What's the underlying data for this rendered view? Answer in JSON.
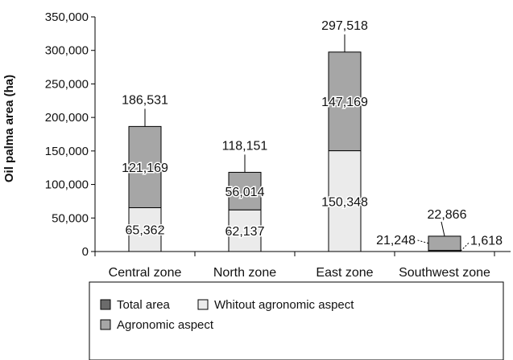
{
  "chart_data": {
    "type": "bar",
    "stacked": true,
    "ylabel": "Oil palma area (ha)",
    "ylim": [
      0,
      350000
    ],
    "yticks": [
      "0",
      "50,000",
      "100,000",
      "150,000",
      "200,000",
      "250,000",
      "300,000",
      "350,000"
    ],
    "categories": [
      "Central zone",
      "North zone",
      "East zone",
      "Southwest zone"
    ],
    "series": [
      {
        "name": "Total area",
        "values": [
          0,
          0,
          0,
          1618
        ],
        "labels": [
          "",
          "",
          "",
          "1,618"
        ],
        "color": "#6b6b6b"
      },
      {
        "name": "Whitout agronomic aspect",
        "values": [
          65362,
          62137,
          150348,
          0
        ],
        "labels": [
          "65,362",
          "62,137",
          "150,348",
          ""
        ],
        "color": "#ebebeb"
      },
      {
        "name": "Agronomic aspect",
        "values": [
          121169,
          56014,
          147169,
          21248
        ],
        "labels": [
          "121,169",
          "56,014",
          "147,169",
          "21,248"
        ],
        "color": "#a6a6a6"
      }
    ],
    "totals": [
      "186,531",
      "118,151",
      "297,518",
      "22,866"
    ],
    "legend_position": "bottom",
    "grid": false
  }
}
